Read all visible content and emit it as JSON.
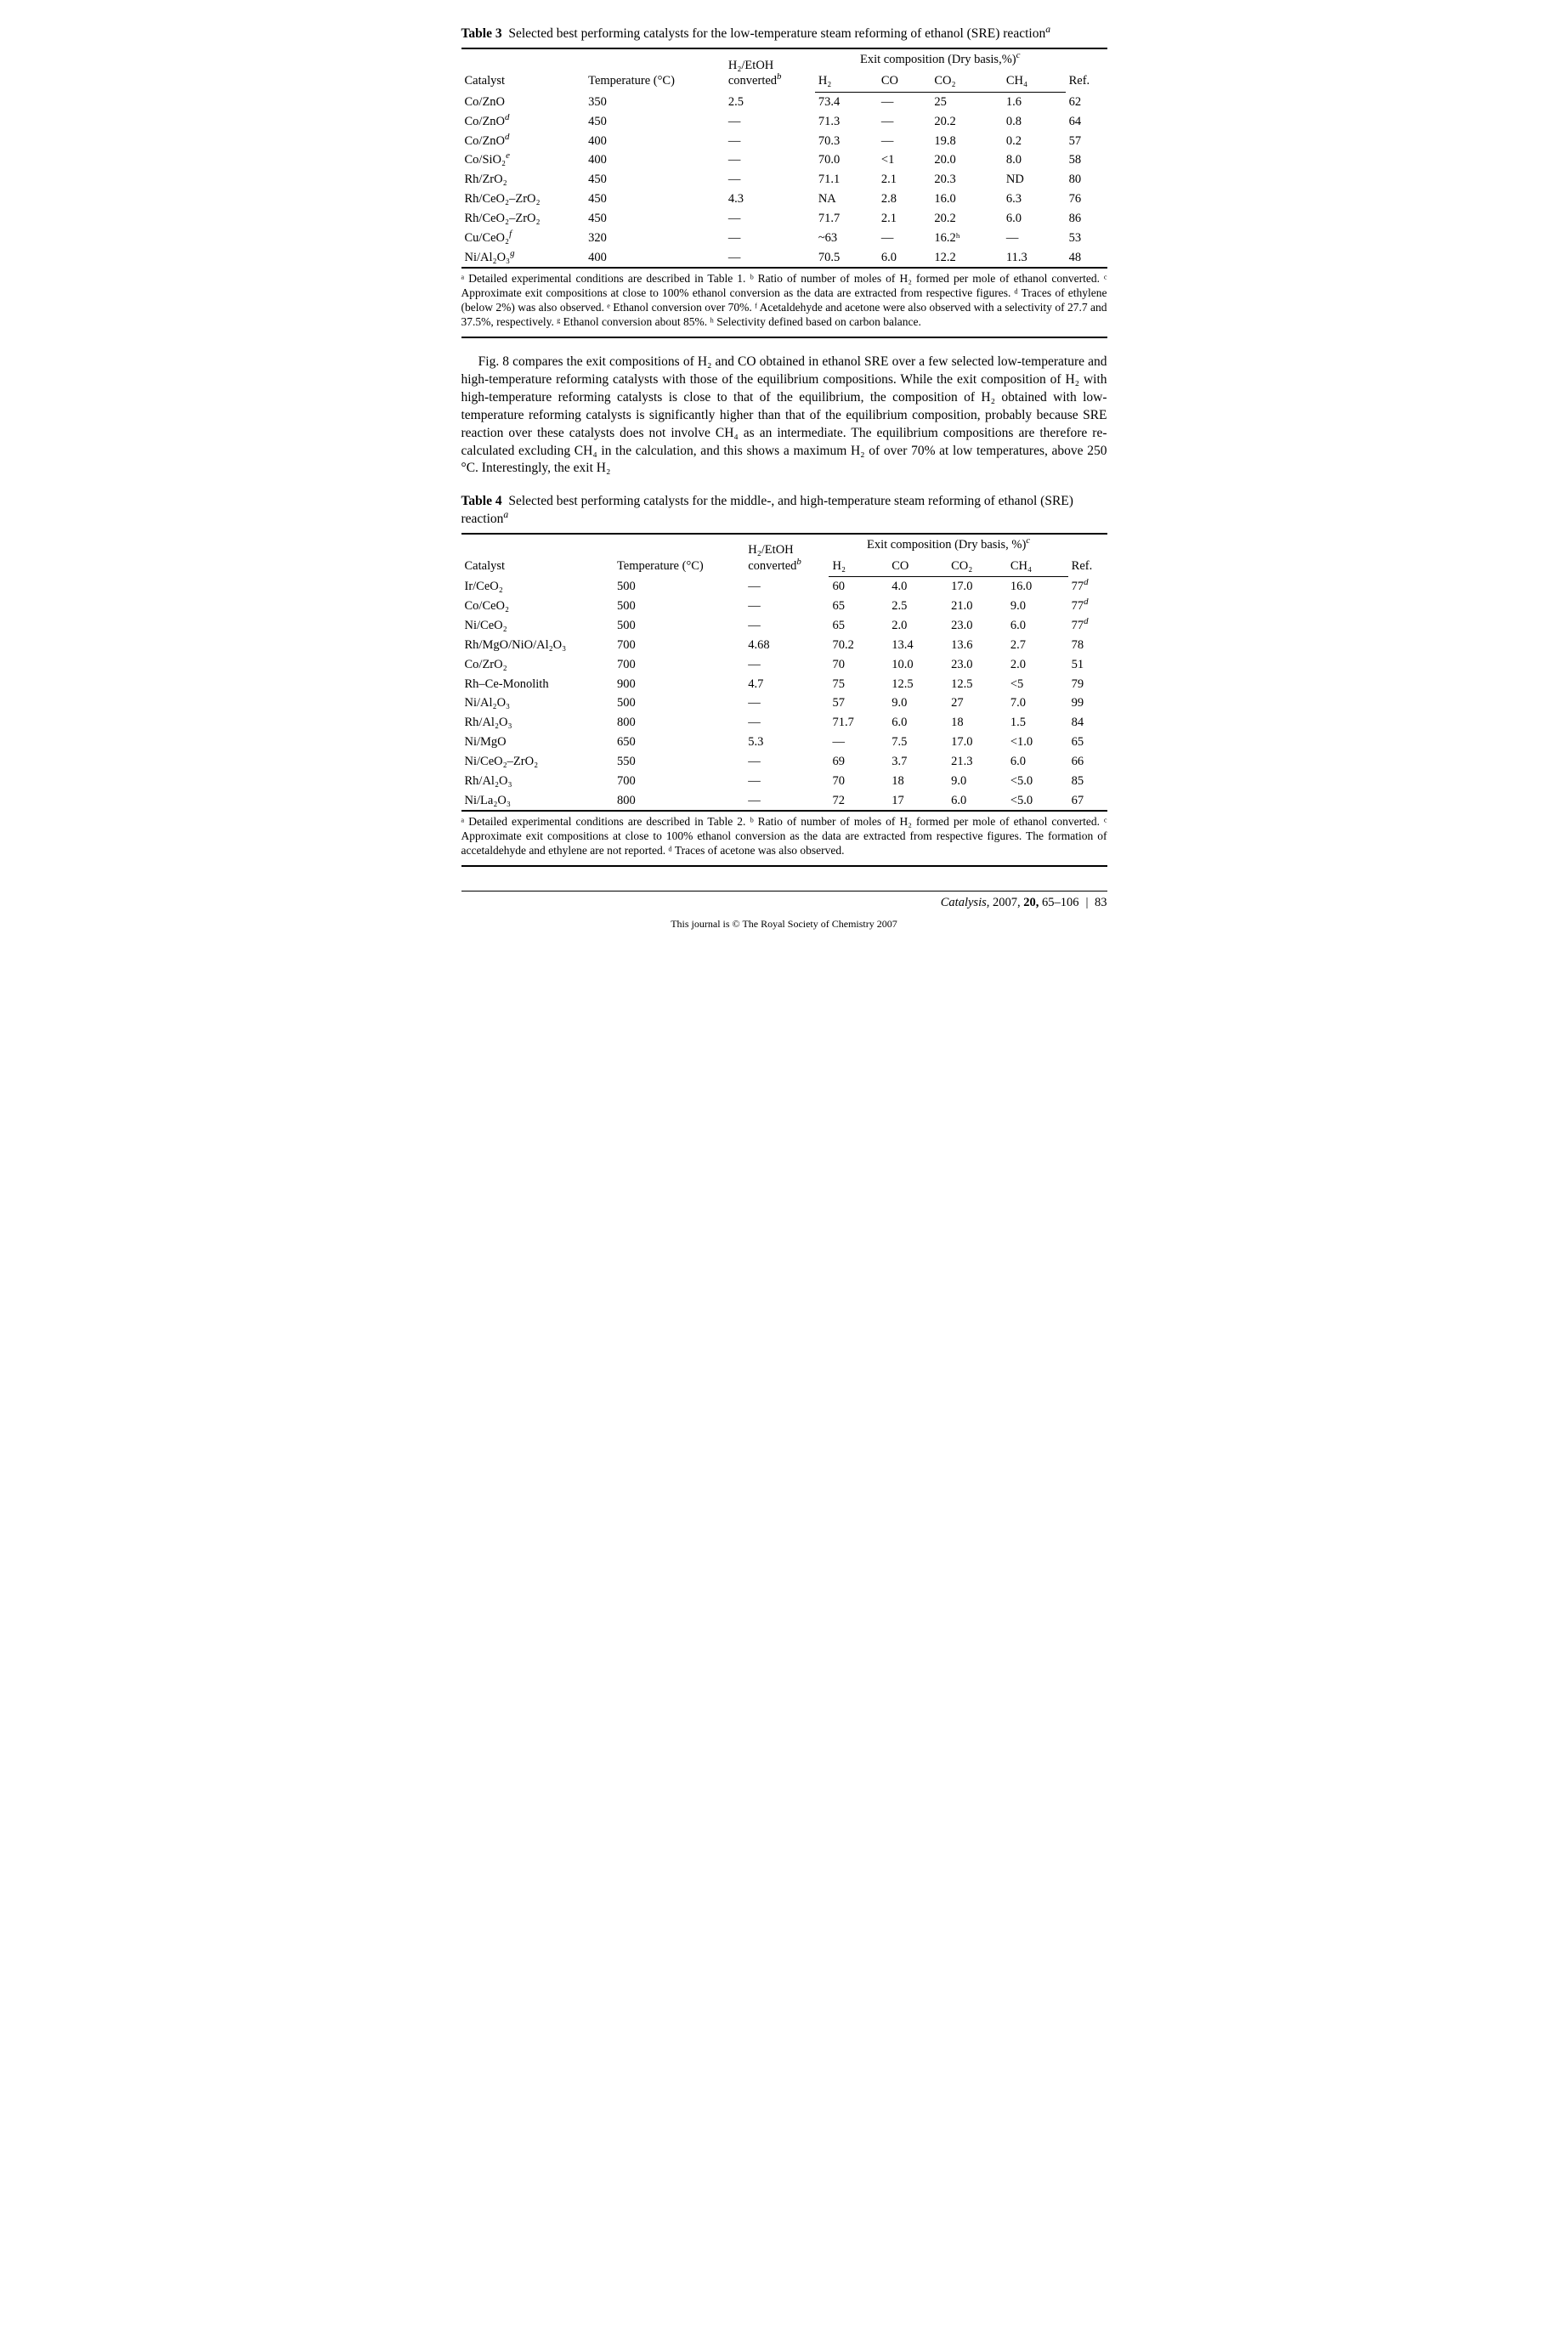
{
  "table3": {
    "caption_label": "Table 3",
    "caption_text": "Selected best performing catalysts for the low-temperature steam reforming of ethanol (SRE) reaction",
    "caption_sup": "a",
    "group_header": "Exit composition (Dry basis,%)",
    "group_header_sup": "c",
    "cols": {
      "catalyst": "Catalyst",
      "temp": "Temperature (°C)",
      "h2etoh_line1": "H₂/EtOH",
      "h2etoh_line2": "converted",
      "h2etoh_sup": "b",
      "h2": "H₂",
      "co": "CO",
      "co2": "CO₂",
      "ch4": "CH₄",
      "ref": "Ref."
    },
    "rows": [
      {
        "cat": "Co/ZnO",
        "sup": "",
        "temp": "350",
        "conv": "2.5",
        "h2": "73.4",
        "co": "—",
        "co2": "25",
        "ch4": "1.6",
        "ref": "62"
      },
      {
        "cat": "Co/ZnO",
        "sup": "d",
        "temp": "450",
        "conv": "—",
        "h2": "71.3",
        "co": "—",
        "co2": "20.2",
        "ch4": "0.8",
        "ref": "64"
      },
      {
        "cat": "Co/ZnO",
        "sup": "d",
        "temp": "400",
        "conv": "—",
        "h2": "70.3",
        "co": "—",
        "co2": "19.8",
        "ch4": "0.2",
        "ref": "57"
      },
      {
        "cat": "Co/SiO₂",
        "sup": "e",
        "temp": "400",
        "conv": "—",
        "h2": "70.0",
        "co": "<1",
        "co2": "20.0",
        "ch4": "8.0",
        "ref": "58"
      },
      {
        "cat": "Rh/ZrO₂",
        "sup": "",
        "temp": "450",
        "conv": "—",
        "h2": "71.1",
        "co": "2.1",
        "co2": "20.3",
        "ch4": "ND",
        "ref": "80"
      },
      {
        "cat": "Rh/CeO₂–ZrO₂",
        "sup": "",
        "temp": "450",
        "conv": "4.3",
        "h2": "NA",
        "co": "2.8",
        "co2": "16.0",
        "ch4": "6.3",
        "ref": "76"
      },
      {
        "cat": "Rh/CeO₂–ZrO₂",
        "sup": "",
        "temp": "450",
        "conv": "—",
        "h2": "71.7",
        "co": "2.1",
        "co2": "20.2",
        "ch4": "6.0",
        "ref": "86"
      },
      {
        "cat": "Cu/CeO₂",
        "sup": "f",
        "temp": "320",
        "conv": "—",
        "h2": "~63",
        "co": "—",
        "co2": "16.2ʰ",
        "ch4": "—",
        "ref": "53"
      },
      {
        "cat": "Ni/Al₂O₃",
        "sup": "g",
        "temp": "400",
        "conv": "—",
        "h2": "70.5",
        "co": "6.0",
        "co2": "12.2",
        "ch4": "11.3",
        "ref": "48"
      }
    ],
    "footnotes": "ᵃ Detailed experimental conditions are described in Table 1. ᵇ Ratio of number of moles of H₂ formed per mole of ethanol converted. ᶜ Approximate exit compositions at close to 100% ethanol conversion as the data are extracted from respective figures. ᵈ Traces of ethylene (below 2%) was also observed. ᵉ Ethanol conversion over 70%. ᶠ Acetaldehyde and acetone were also observed with a selectivity of 27.7 and 37.5%, respectively. ᵍ Ethanol conversion about 85%. ʰ Selectivity defined based on carbon balance."
  },
  "paragraph": "Fig. 8 compares the exit compositions of H₂ and CO obtained in ethanol SRE over a few selected low-temperature and high-temperature reforming catalysts with those of the equilibrium compositions. While the exit composition of H₂ with high-temperature reforming catalysts is close to that of the equilibrium, the composition of H₂ obtained with low-temperature reforming catalysts is significantly higher than that of the equilibrium composition, probably because SRE reaction over these catalysts does not involve CH₄ as an intermediate. The equilibrium compositions are therefore re-calculated excluding CH₄ in the calculation, and this shows a maximum H₂ of over 70% at low temperatures, above 250 °C. Interestingly, the exit H₂",
  "table4": {
    "caption_label": "Table 4",
    "caption_text": "Selected best performing catalysts for the middle-, and high-temperature steam reforming of ethanol (SRE) reaction",
    "caption_sup": "a",
    "group_header": "Exit composition (Dry basis, %)",
    "group_header_sup": "c",
    "cols": {
      "catalyst": "Catalyst",
      "temp": "Temperature (°C)",
      "h2etoh_line1": "H₂/EtOH",
      "h2etoh_line2": "converted",
      "h2etoh_sup": "b",
      "h2": "H₂",
      "co": "CO",
      "co2": "CO₂",
      "ch4": "CH₄",
      "ref": "Ref."
    },
    "rows": [
      {
        "cat": "Ir/CeO₂",
        "sup": "",
        "temp": "500",
        "conv": "—",
        "h2": "60",
        "co": "4.0",
        "co2": "17.0",
        "ch4": "16.0",
        "ref": "77",
        "refsup": "d"
      },
      {
        "cat": "Co/CeO₂",
        "sup": "",
        "temp": "500",
        "conv": "—",
        "h2": "65",
        "co": "2.5",
        "co2": "21.0",
        "ch4": "9.0",
        "ref": "77",
        "refsup": "d"
      },
      {
        "cat": "Ni/CeO₂",
        "sup": "",
        "temp": "500",
        "conv": "—",
        "h2": "65",
        "co": "2.0",
        "co2": "23.0",
        "ch4": "6.0",
        "ref": "77",
        "refsup": "d"
      },
      {
        "cat": "Rh/MgO/NiO/Al₂O₃",
        "sup": "",
        "temp": "700",
        "conv": "4.68",
        "h2": "70.2",
        "co": "13.4",
        "co2": "13.6",
        "ch4": "2.7",
        "ref": "78",
        "refsup": ""
      },
      {
        "cat": "Co/ZrO₂",
        "sup": "",
        "temp": "700",
        "conv": "—",
        "h2": "70",
        "co": "10.0",
        "co2": "23.0",
        "ch4": "2.0",
        "ref": "51",
        "refsup": ""
      },
      {
        "cat": "Rh–Ce-Monolith",
        "sup": "",
        "temp": "900",
        "conv": "4.7",
        "h2": "75",
        "co": "12.5",
        "co2": "12.5",
        "ch4": "<5",
        "ref": "79",
        "refsup": ""
      },
      {
        "cat": "Ni/Al₂O₃",
        "sup": "",
        "temp": "500",
        "conv": "—",
        "h2": "57",
        "co": "9.0",
        "co2": "27",
        "ch4": "7.0",
        "ref": "99",
        "refsup": ""
      },
      {
        "cat": "Rh/Al₂O₃",
        "sup": "",
        "temp": "800",
        "conv": "—",
        "h2": "71.7",
        "co": "6.0",
        "co2": "18",
        "ch4": "1.5",
        "ref": "84",
        "refsup": ""
      },
      {
        "cat": "Ni/MgO",
        "sup": "",
        "temp": "650",
        "conv": "5.3",
        "h2": "—",
        "co": "7.5",
        "co2": "17.0",
        "ch4": "<1.0",
        "ref": "65",
        "refsup": ""
      },
      {
        "cat": "Ni/CeO₂–ZrO₂",
        "sup": "",
        "temp": "550",
        "conv": "—",
        "h2": "69",
        "co": "3.7",
        "co2": "21.3",
        "ch4": "6.0",
        "ref": "66",
        "refsup": ""
      },
      {
        "cat": "Rh/Al₂O₃",
        "sup": "",
        "temp": "700",
        "conv": "—",
        "h2": "70",
        "co": "18",
        "co2": "9.0",
        "ch4": "<5.0",
        "ref": "85",
        "refsup": ""
      },
      {
        "cat": "Ni/La₂O₃",
        "sup": "",
        "temp": "800",
        "conv": "—",
        "h2": "72",
        "co": "17",
        "co2": "6.0",
        "ch4": "<5.0",
        "ref": "67",
        "refsup": ""
      }
    ],
    "footnotes": "ᵃ Detailed experimental conditions are described in Table 2. ᵇ Ratio of number of moles of H₂ formed per mole of ethanol converted. ᶜ Approximate exit compositions at close to 100% ethanol conversion as the data are extracted from respective figures. The formation of accetaldehyde and ethylene are not reported. ᵈ Traces of acetone was also observed."
  },
  "footer": {
    "journal": "Catalysis,",
    "year": "2007,",
    "vol": "20,",
    "pages": "65–106",
    "pg": "83",
    "copyright": "This journal is © The Royal Society of Chemistry 2007"
  }
}
